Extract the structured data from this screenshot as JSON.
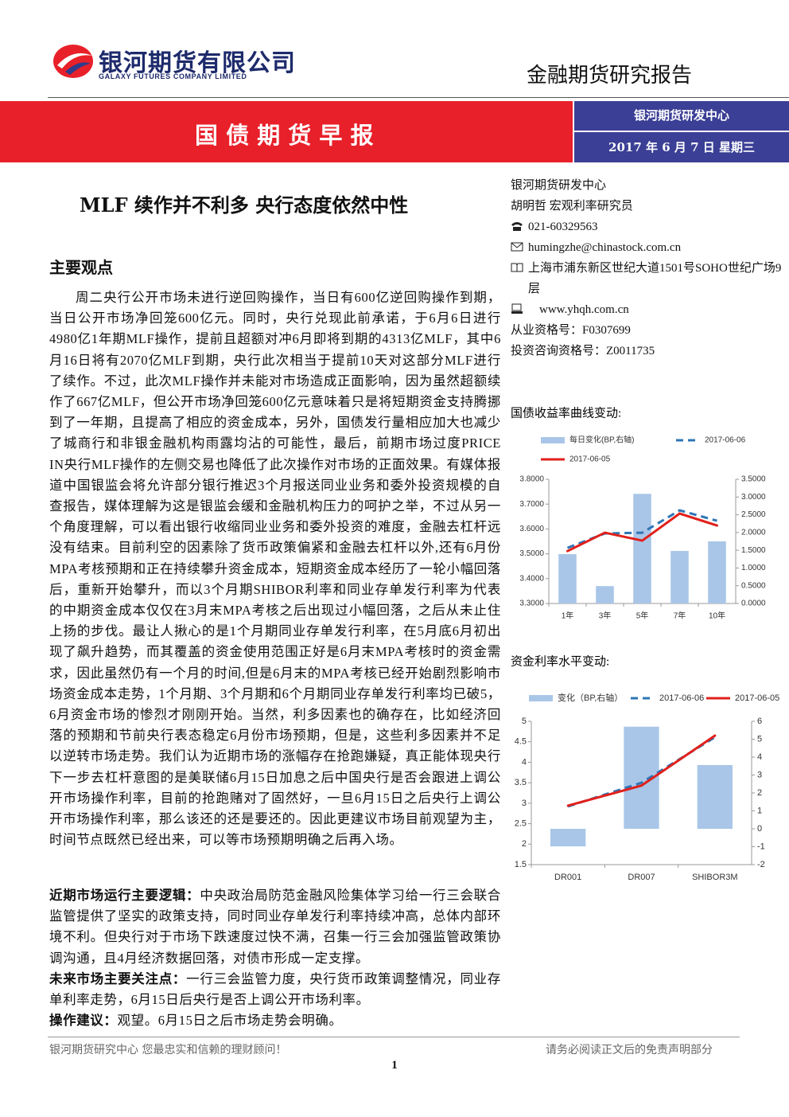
{
  "header": {
    "company": "银河期货有限公司",
    "company_en": "GALAXY FUTURES COMPANY LIMITED",
    "report_type": "金融期货研究报告",
    "banner": "国 债 期 货 早 报",
    "center": "银河期货研发中心",
    "date": "2017 年 6 月 7 日  星期三"
  },
  "title": "MLF 续作并不利多    央行态度依然中性",
  "section_heading": "主要观点",
  "main_paragraph": "周二央行公开市场未进行逆回购操作，当日有600亿逆回购操作到期，当日公开市场净回笼600亿元。同时，央行兑现此前承诺，于6月6日进行4980亿1年期MLF操作，提前且超额对冲6月即将到期的4313亿MLF，其中6月16日将有2070亿MLF到期，央行此次相当于提前10天对这部分MLF进行了续作。不过，此次MLF操作并未能对市场造成正面影响，因为虽然超额续作了667亿MLF，但公开市场净回笼600亿元意味着只是将短期资金支持腾挪到了一年期，且提高了相应的资金成本，另外，国债发行量相应加大也减少了城商行和非银金融机构雨露均沾的可能性，最后，前期市场过度PRICE IN央行MLF操作的左侧交易也降低了此次操作对市场的正面效果。有媒体报道中国银监会将允许部分银行推迟3个月报送同业业务和委外投资规模的自查报告，媒体理解为这是银监会缓和金融机构压力的呵护之举，不过从另一个角度理解，可以看出银行收缩同业业务和委外投资的难度，金融去杠杆远没有结束。目前利空的因素除了货币政策偏紧和金融去杠杆以外,还有6月份MPA考核预期和正在持续攀升资金成本，短期资金成本经历了一轮小幅回落后，重新开始攀升，而以3个月期SHIBOR利率和同业存单发行利率为代表的中期资金成本仅仅在3月末MPA考核之后出现过小幅回落，之后从未止住上扬的步伐。最让人揪心的是1个月期同业存单发行利率，在5月底6月初出现了飙升趋势，而其覆盖的资金使用范围正好是6月末MPA考核时的资金需求，因此虽然仍有一个月的时间,但是6月末的MPA考核已经开始剧烈影响市场资金成本走势，1个月期、3个月期和6个月期同业存单发行利率均已破5，6月资金市场的惨烈才刚刚开始。当然，利多因素也的确存在，比如经济回落的预期和节前央行表态稳定6月份市场预期，但是，这些利多因素并不足以逆转市场走势。我们认为近期市场的涨幅存在抢跑嫌疑，真正能体现央行下一步去杠杆意图的是美联储6月15日加息之后中国央行是否会跟进上调公开市场操作利率，目前的抢跑赌对了固然好，一旦6月15日之后央行上调公开市场操作利率，那么该还的还是要还的。因此更建议市场目前观望为主，时间节点既然已经出来，可以等市场预期明确之后再入场。",
  "key_points": [
    {
      "label": "近期市场运行主要逻辑：",
      "text": "中央政治局防范金融风险集体学习给一行三会联合监管提供了坚实的政策支持，同时同业存单发行利率持续冲高，总体内部环境不利。但央行对于市场下跌速度过快不满，召集一行三会加强监管政策协调沟通，且4月经济数据回落，对债市形成一定支撑。"
    },
    {
      "label": "未来市场主要关注点：",
      "text": "一行三会监管力度，央行货币政策调整情况，同业存单利率走势，6月15日后央行是否上调公开市场利率。"
    },
    {
      "label": "操作建议：",
      "text": "观望。6月15日之后市场走势会明确。"
    }
  ],
  "sidebar": {
    "org": "银河期货研发中心",
    "author": "胡明哲    宏观利率研究员",
    "phone": "021-60329563",
    "email": "humingzhe@chinastock.com.cn",
    "address": "上海市浦东新区世纪大道1501号SOHO世纪广场9层",
    "website": "www.yhqh.com.cn",
    "license": "从业资格号：F0307699",
    "advisor_license": "投资咨询资格号：Z0011735"
  },
  "footer": {
    "left": "银河期货研究中心  您最忠实和信赖的理财顾问！",
    "right": "请务必阅读正文后的免责声明部分",
    "page": "1"
  },
  "chart_data": [
    {
      "type": "bar-line",
      "title": "国债收益率曲线变动:",
      "categories": [
        "1年",
        "3年",
        "5年",
        "7年",
        "10年"
      ],
      "series": [
        {
          "name": "每日变化(BP,右轴)",
          "type": "bar",
          "axis": "y2",
          "color": "#a9c6e8",
          "values": [
            1.39,
            0.49,
            3.09,
            1.48,
            1.75
          ]
        },
        {
          "name": "2017-06-06",
          "type": "line",
          "dashed": true,
          "color": "#2e75b6",
          "values": [
            3.524,
            3.582,
            3.585,
            3.675,
            3.633
          ]
        },
        {
          "name": "2017-06-05",
          "type": "line",
          "color": "#e0201b",
          "values": [
            3.511,
            3.585,
            3.553,
            3.662,
            3.614
          ]
        }
      ],
      "ylim": [
        3.3,
        3.8
      ],
      "yticks": [
        {
          "value": 3.3,
          "label": "3.3000"
        },
        {
          "value": 3.4,
          "label": "3.4000"
        },
        {
          "value": 3.5,
          "label": "3.5000"
        },
        {
          "value": 3.6,
          "label": "3.6000"
        },
        {
          "value": 3.7,
          "label": "3.7000"
        },
        {
          "value": 3.8,
          "label": "3.8000"
        }
      ],
      "y2lim": [
        0,
        3.5
      ],
      "y2ticks": [
        {
          "value": 0,
          "label": "0.0000"
        },
        {
          "value": 0.5,
          "label": "0.5000"
        },
        {
          "value": 1,
          "label": "1.0000"
        },
        {
          "value": 1.5,
          "label": "1.5000"
        },
        {
          "value": 2,
          "label": "2.0000"
        },
        {
          "value": 2.5,
          "label": "2.5000"
        },
        {
          "value": 3,
          "label": "3.0000"
        },
        {
          "value": 3.5,
          "label": "3.5000"
        }
      ],
      "legend": "top"
    },
    {
      "type": "bar-line",
      "title": "资金利率水平变动:",
      "categories": [
        "DR001",
        "DR007",
        "SHIBOR3M"
      ],
      "series": [
        {
          "name": "变化（BP,右轴）",
          "type": "bar",
          "axis": "y2",
          "color": "#a9c6e8",
          "values": [
            -0.98,
            5.7,
            3.56
          ]
        },
        {
          "name": "2017-06-06",
          "type": "line",
          "dashed": true,
          "color": "#2e75b6",
          "values": [
            2.92,
            3.5,
            4.61
          ]
        },
        {
          "name": "2017-06-05",
          "type": "line",
          "color": "#e0201b",
          "values": [
            2.94,
            3.43,
            4.65
          ]
        }
      ],
      "ylim": [
        1.5,
        5
      ],
      "yticks": [
        1.5,
        2,
        2.5,
        3,
        3.5,
        4,
        4.5,
        5
      ],
      "y2lim": [
        -2,
        6
      ],
      "y2ticks": [
        -2,
        -1,
        0,
        1,
        2,
        3,
        4,
        5,
        6
      ],
      "legend": "top"
    }
  ]
}
